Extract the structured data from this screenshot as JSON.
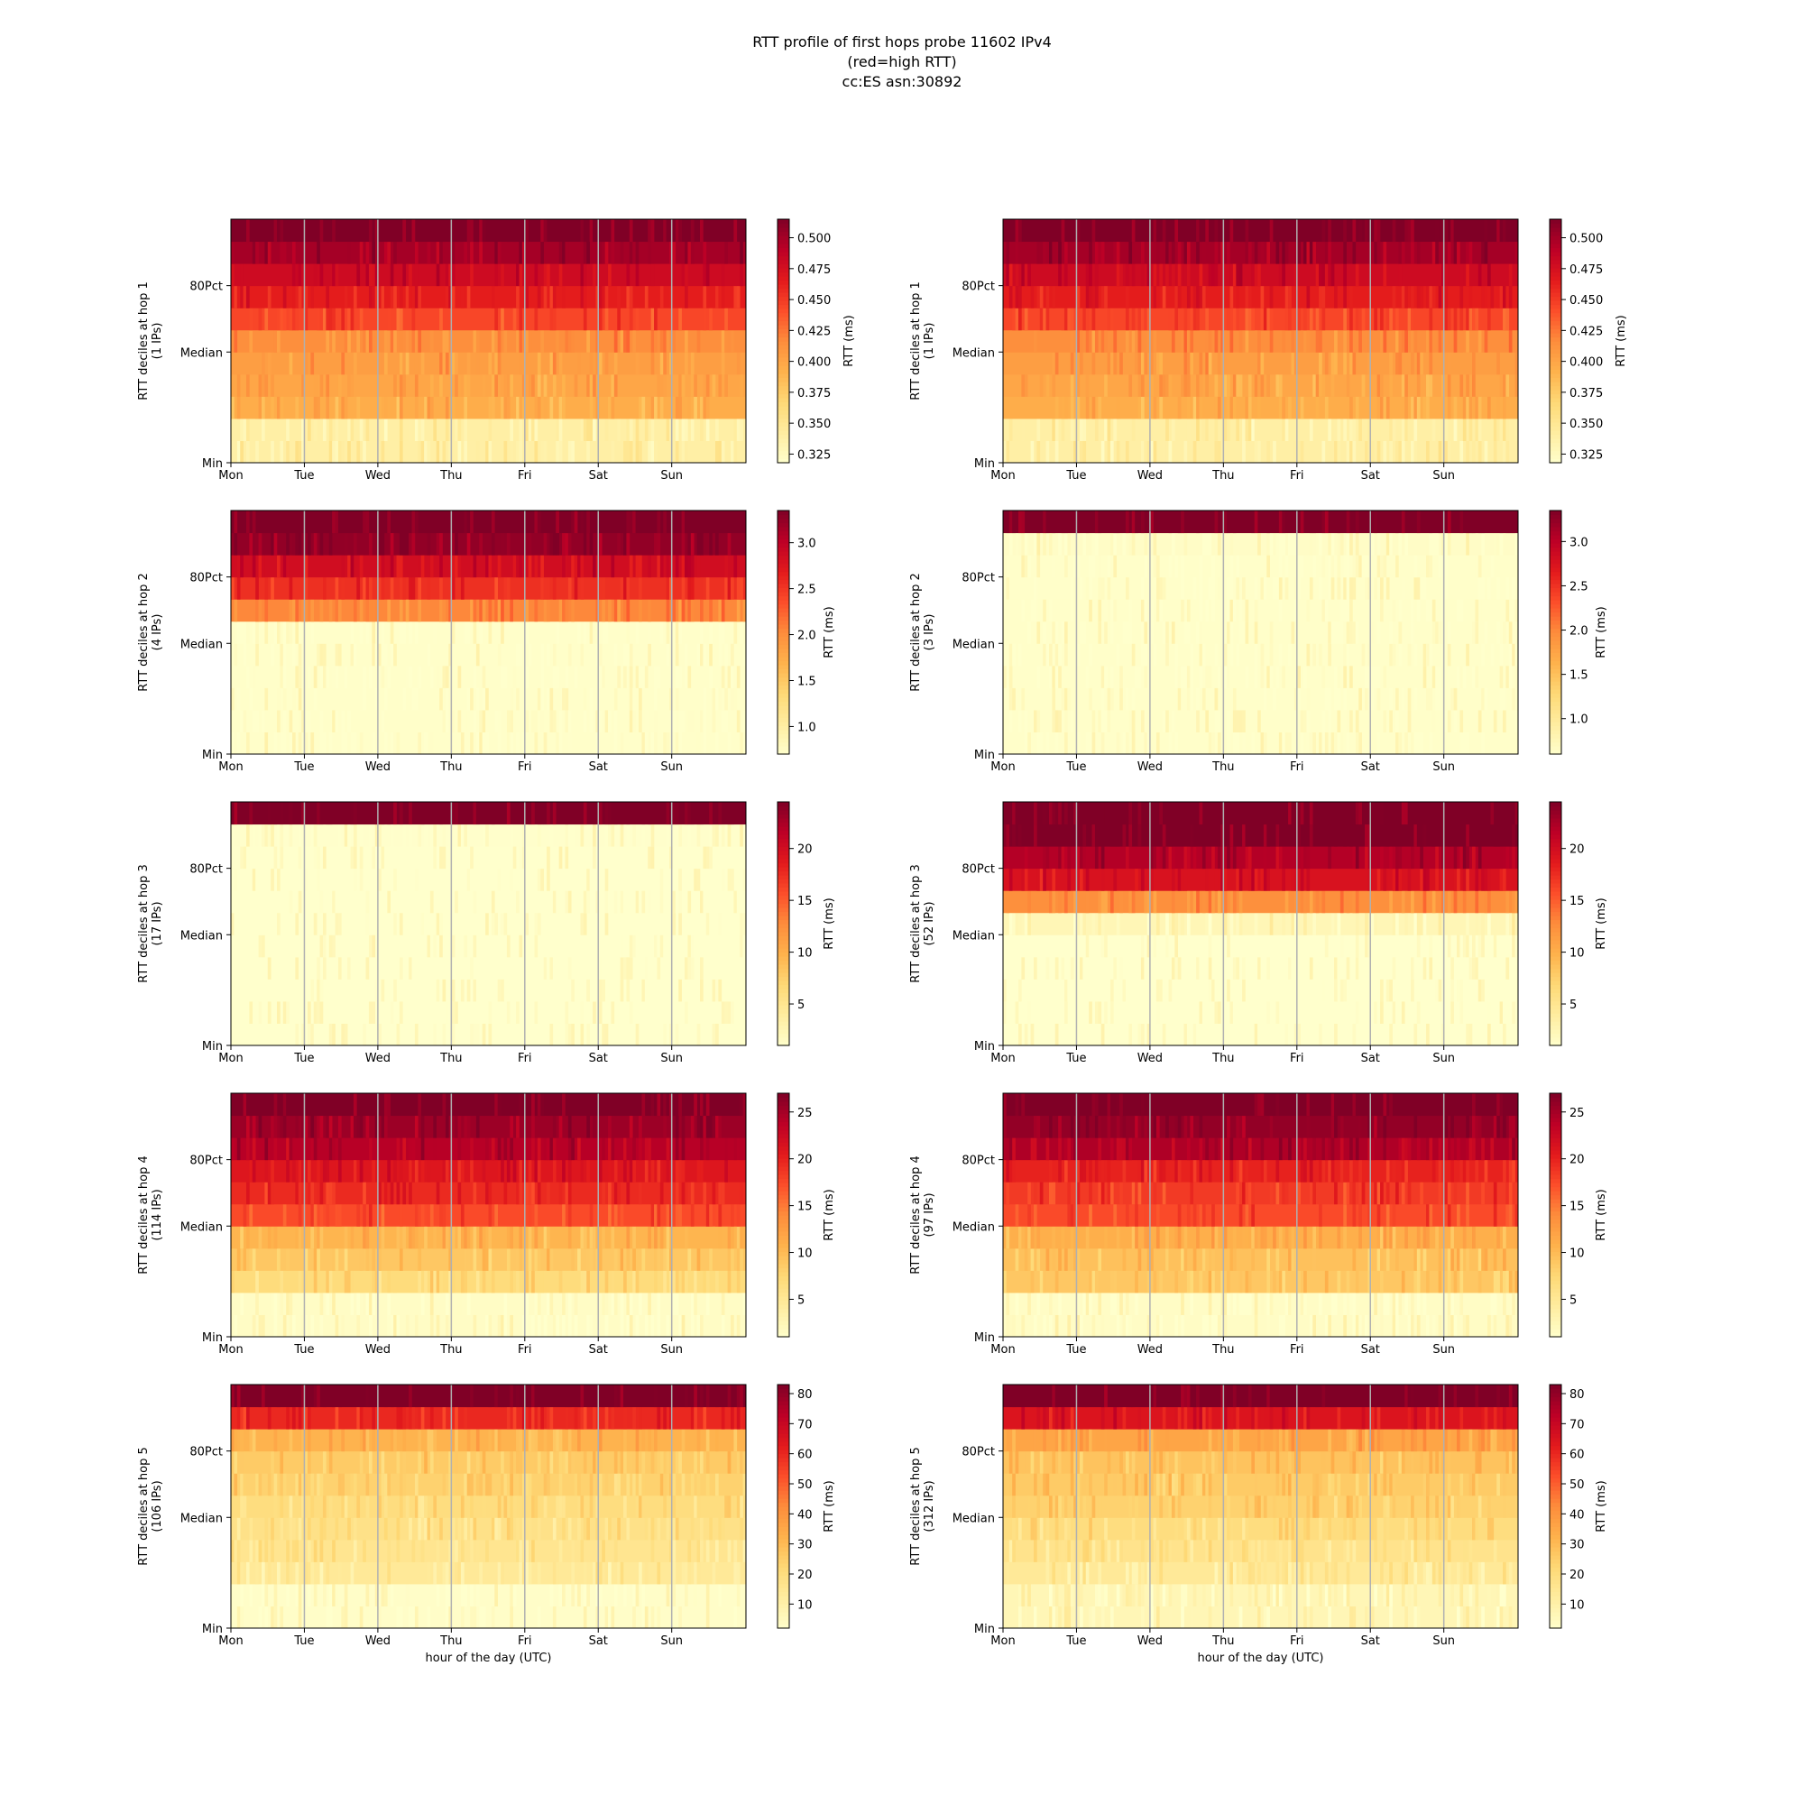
{
  "figure": {
    "title_lines": [
      "RTT profile of first hops probe 11602 IPv4",
      "(red=high RTT)",
      "cc:ES asn:30892"
    ],
    "x_ticks": [
      "Mon",
      "Tue",
      "Wed",
      "Thu",
      "Fri",
      "Sat",
      "Sun"
    ],
    "x_label": "hour of the day (UTC)",
    "y_ticks": [
      "Min",
      "Median",
      "80Pct"
    ],
    "colorbar_label": "RTT (ms)",
    "colormap": "YlOrRd",
    "colors": {
      "low": "#ffffcc",
      "mid": "#fd8d3c",
      "high": "#800026"
    }
  },
  "chart_data": [
    {
      "type": "heatmap",
      "hop": 1,
      "ips": "1 IPs",
      "ylabel": "RTT deciles at hop 1",
      "ylabel2": "(1 IPs)",
      "colorbar_ticks": [
        "0.325",
        "0.350",
        "0.375",
        "0.400",
        "0.425",
        "0.450",
        "0.475",
        "0.500"
      ],
      "colorbar_range": [
        0.318,
        0.515
      ],
      "decile_values": [
        0.34,
        0.395,
        0.4,
        0.405,
        0.415,
        0.445,
        0.465,
        0.48,
        0.5,
        0.515
      ]
    },
    {
      "type": "heatmap",
      "hop": 1,
      "ips": "1 IPs",
      "ylabel": "RTT deciles at hop 1",
      "ylabel2": "(1 IPs)",
      "colorbar_ticks": [
        "0.325",
        "0.350",
        "0.375",
        "0.400",
        "0.425",
        "0.450",
        "0.475",
        "0.500"
      ],
      "colorbar_range": [
        0.318,
        0.515
      ],
      "decile_values": [
        0.34,
        0.395,
        0.4,
        0.405,
        0.415,
        0.445,
        0.465,
        0.48,
        0.5,
        0.515
      ]
    },
    {
      "type": "heatmap",
      "hop": 2,
      "ips": "4 IPs",
      "ylabel": "RTT deciles at hop 2",
      "ylabel2": "(4 IPs)",
      "colorbar_ticks": [
        "1.0",
        "1.5",
        "2.0",
        "2.5",
        "3.0"
      ],
      "colorbar_range": [
        0.7,
        3.35
      ],
      "decile_values": [
        0.72,
        0.72,
        0.72,
        0.72,
        0.72,
        2.05,
        2.55,
        2.85,
        3.25,
        3.35
      ]
    },
    {
      "type": "heatmap",
      "hop": 2,
      "ips": "3 IPs",
      "ylabel": "RTT deciles at hop 2",
      "ylabel2": "(3 IPs)",
      "colorbar_ticks": [
        "1.0",
        "1.5",
        "2.0",
        "2.5",
        "3.0"
      ],
      "colorbar_range": [
        0.6,
        3.35
      ],
      "decile_values": [
        0.62,
        0.62,
        0.62,
        0.62,
        0.62,
        0.62,
        0.62,
        0.62,
        0.65,
        3.35
      ]
    },
    {
      "type": "heatmap",
      "hop": 3,
      "ips": "17 IPs",
      "ylabel": "RTT deciles at hop 3",
      "ylabel2": "(17 IPs)",
      "colorbar_ticks": [
        "5",
        "10",
        "15",
        "20"
      ],
      "colorbar_range": [
        1.0,
        24.5
      ],
      "decile_values": [
        1.0,
        1.0,
        1.0,
        1.0,
        1.0,
        1.0,
        1.0,
        1.0,
        1.1,
        24.5
      ]
    },
    {
      "type": "heatmap",
      "hop": 3,
      "ips": "52 IPs",
      "ylabel": "RTT deciles at hop 3",
      "ylabel2": "(52 IPs)",
      "colorbar_ticks": [
        "5",
        "10",
        "15",
        "20"
      ],
      "colorbar_range": [
        1.0,
        24.5
      ],
      "decile_values": [
        1.0,
        1.0,
        1.0,
        1.0,
        2.5,
        12.5,
        19.5,
        22.0,
        24.5,
        24.5
      ]
    },
    {
      "type": "heatmap",
      "hop": 4,
      "ips": "114 IPs",
      "ylabel": "RTT deciles at hop 4",
      "ylabel2": "(114 IPs)",
      "colorbar_ticks": [
        "5",
        "10",
        "15",
        "20",
        "25"
      ],
      "colorbar_range": [
        1.0,
        27.0
      ],
      "decile_values": [
        1.5,
        7.0,
        9.0,
        10.5,
        17.5,
        19.5,
        21.0,
        24.0,
        25.5,
        27.0
      ]
    },
    {
      "type": "heatmap",
      "hop": 4,
      "ips": "97 IPs",
      "ylabel": "RTT deciles at hop 4",
      "ylabel2": "(97 IPs)",
      "colorbar_ticks": [
        "5",
        "10",
        "15",
        "20",
        "25"
      ],
      "colorbar_range": [
        1.0,
        27.0
      ],
      "decile_values": [
        1.5,
        9.0,
        9.5,
        11.0,
        17.5,
        18.5,
        20.0,
        24.5,
        26.0,
        27.0
      ]
    },
    {
      "type": "heatmap",
      "hop": 5,
      "ips": "106 IPs",
      "ylabel": "RTT deciles at hop 5",
      "ylabel2": "(106 IPs)",
      "colorbar_ticks": [
        "10",
        "20",
        "30",
        "40",
        "50",
        "60",
        "70",
        "80"
      ],
      "colorbar_range": [
        2.0,
        83.0
      ],
      "decile_values": [
        3.0,
        14.0,
        16.0,
        18.0,
        20.0,
        24.0,
        26.0,
        32.0,
        60.0,
        83.0
      ]
    },
    {
      "type": "heatmap",
      "hop": 5,
      "ips": "312 IPs",
      "ylabel": "RTT deciles at hop 5",
      "ylabel2": "(312 IPs)",
      "colorbar_ticks": [
        "10",
        "20",
        "30",
        "40",
        "50",
        "60",
        "70",
        "80"
      ],
      "colorbar_range": [
        2.0,
        83.0
      ],
      "decile_values": [
        7.0,
        14.0,
        17.0,
        20.0,
        24.0,
        26.0,
        28.0,
        36.0,
        65.0,
        83.0
      ]
    }
  ]
}
